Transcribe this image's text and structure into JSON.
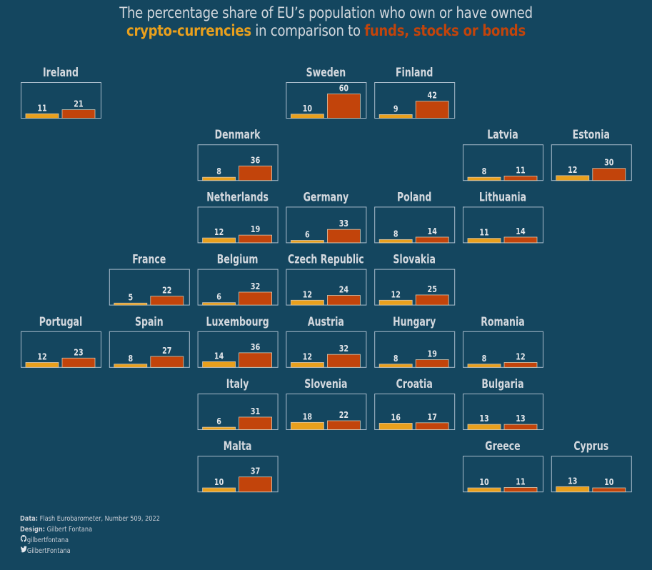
{
  "title": {
    "line1": "The percentage share of EU’s population who own or have owned",
    "line2_highlight_a": "crypto-currencies",
    "line2_middle": " in comparison to ",
    "line2_highlight_b": "funds, stocks or bonds"
  },
  "colors": {
    "background": "#14465f",
    "crypto": "#e9a01d",
    "funds": "#c2440b",
    "frame": "#a9bccb",
    "text": "#d9dde3"
  },
  "credits": {
    "data_label": "Data:",
    "data_value": " Flash Eurobarometer, Number 509, 2022",
    "design_label": "Design:",
    "design_value": " Gilbert Fontana",
    "github_icon": "github-icon",
    "github_handle": "gilbertfontana",
    "twitter_icon": "twitter-icon",
    "twitter_handle": "GilbertFontana"
  },
  "chart_data": {
    "type": "bar",
    "layout": "tile-grid map of EU member states, one small bar chart per country",
    "title": "The percentage share of EU’s population who own or have owned crypto-currencies in comparison to funds, stocks or bonds",
    "xlabel": "",
    "ylabel": "",
    "unit": "%",
    "ylim": [
      0,
      60
    ],
    "grid": false,
    "legend": "in-title",
    "series_names": [
      "crypto-currencies",
      "funds, stocks or bonds"
    ],
    "countries": [
      {
        "name": "Ireland",
        "col": 0,
        "row": 0,
        "crypto": 11,
        "funds": 21
      },
      {
        "name": "Sweden",
        "col": 3,
        "row": 0,
        "crypto": 10,
        "funds": 60
      },
      {
        "name": "Finland",
        "col": 4,
        "row": 0,
        "crypto": 9,
        "funds": 42
      },
      {
        "name": "Denmark",
        "col": 2,
        "row": 1,
        "crypto": 8,
        "funds": 36
      },
      {
        "name": "Latvia",
        "col": 5,
        "row": 1,
        "crypto": 8,
        "funds": 11
      },
      {
        "name": "Estonia",
        "col": 6,
        "row": 1,
        "crypto": 12,
        "funds": 30
      },
      {
        "name": "Netherlands",
        "col": 2,
        "row": 2,
        "crypto": 12,
        "funds": 19
      },
      {
        "name": "Germany",
        "col": 3,
        "row": 2,
        "crypto": 6,
        "funds": 33
      },
      {
        "name": "Poland",
        "col": 4,
        "row": 2,
        "crypto": 8,
        "funds": 14
      },
      {
        "name": "Lithuania",
        "col": 5,
        "row": 2,
        "crypto": 11,
        "funds": 14
      },
      {
        "name": "France",
        "col": 1,
        "row": 3,
        "crypto": 5,
        "funds": 22
      },
      {
        "name": "Belgium",
        "col": 2,
        "row": 3,
        "crypto": 6,
        "funds": 32
      },
      {
        "name": "Czech Republic",
        "col": 3,
        "row": 3,
        "crypto": 12,
        "funds": 24
      },
      {
        "name": "Slovakia",
        "col": 4,
        "row": 3,
        "crypto": 12,
        "funds": 25
      },
      {
        "name": "Portugal",
        "col": 0,
        "row": 4,
        "crypto": 12,
        "funds": 23
      },
      {
        "name": "Spain",
        "col": 1,
        "row": 4,
        "crypto": 8,
        "funds": 27
      },
      {
        "name": "Luxembourg",
        "col": 2,
        "row": 4,
        "crypto": 14,
        "funds": 36
      },
      {
        "name": "Austria",
        "col": 3,
        "row": 4,
        "crypto": 12,
        "funds": 32
      },
      {
        "name": "Hungary",
        "col": 4,
        "row": 4,
        "crypto": 8,
        "funds": 19
      },
      {
        "name": "Romania",
        "col": 5,
        "row": 4,
        "crypto": 8,
        "funds": 12
      },
      {
        "name": "Italy",
        "col": 2,
        "row": 5,
        "crypto": 6,
        "funds": 31
      },
      {
        "name": "Slovenia",
        "col": 3,
        "row": 5,
        "crypto": 18,
        "funds": 22
      },
      {
        "name": "Croatia",
        "col": 4,
        "row": 5,
        "crypto": 16,
        "funds": 17
      },
      {
        "name": "Bulgaria",
        "col": 5,
        "row": 5,
        "crypto": 13,
        "funds": 13
      },
      {
        "name": "Malta",
        "col": 2,
        "row": 6,
        "crypto": 10,
        "funds": 37
      },
      {
        "name": "Greece",
        "col": 5,
        "row": 6,
        "crypto": 10,
        "funds": 11
      },
      {
        "name": "Cyprus",
        "col": 6,
        "row": 6,
        "crypto": 13,
        "funds": 10
      }
    ]
  }
}
